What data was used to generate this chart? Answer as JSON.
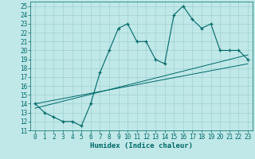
{
  "title": "",
  "xlabel": "Humidex (Indice chaleur)",
  "bg_color": "#c0e8e8",
  "line_color": "#006868",
  "grid_color": "#a0d0d0",
  "xlim": [
    -0.5,
    23.5
  ],
  "ylim": [
    11,
    25.5
  ],
  "xticks": [
    0,
    1,
    2,
    3,
    4,
    5,
    6,
    7,
    8,
    9,
    10,
    11,
    12,
    13,
    14,
    15,
    16,
    17,
    18,
    19,
    20,
    21,
    22,
    23
  ],
  "yticks": [
    11,
    12,
    13,
    14,
    15,
    16,
    17,
    18,
    19,
    20,
    21,
    22,
    23,
    24,
    25
  ],
  "main_x": [
    0,
    1,
    2,
    3,
    4,
    5,
    6,
    7,
    8,
    9,
    10,
    11,
    12,
    13,
    14,
    15,
    16,
    17,
    18,
    19,
    20,
    21,
    22,
    23
  ],
  "main_y": [
    14,
    13,
    12.5,
    12,
    12,
    11.5,
    14,
    17.5,
    20,
    22.5,
    23,
    21,
    21,
    19,
    18.5,
    24,
    25,
    23.5,
    22.5,
    23,
    20,
    20,
    20,
    19
  ],
  "line1_y_start": 14.0,
  "line1_y_end": 18.5,
  "line2_y_start": 13.5,
  "line2_y_end": 19.5,
  "tick_fontsize": 5.5,
  "xlabel_fontsize": 6.5
}
